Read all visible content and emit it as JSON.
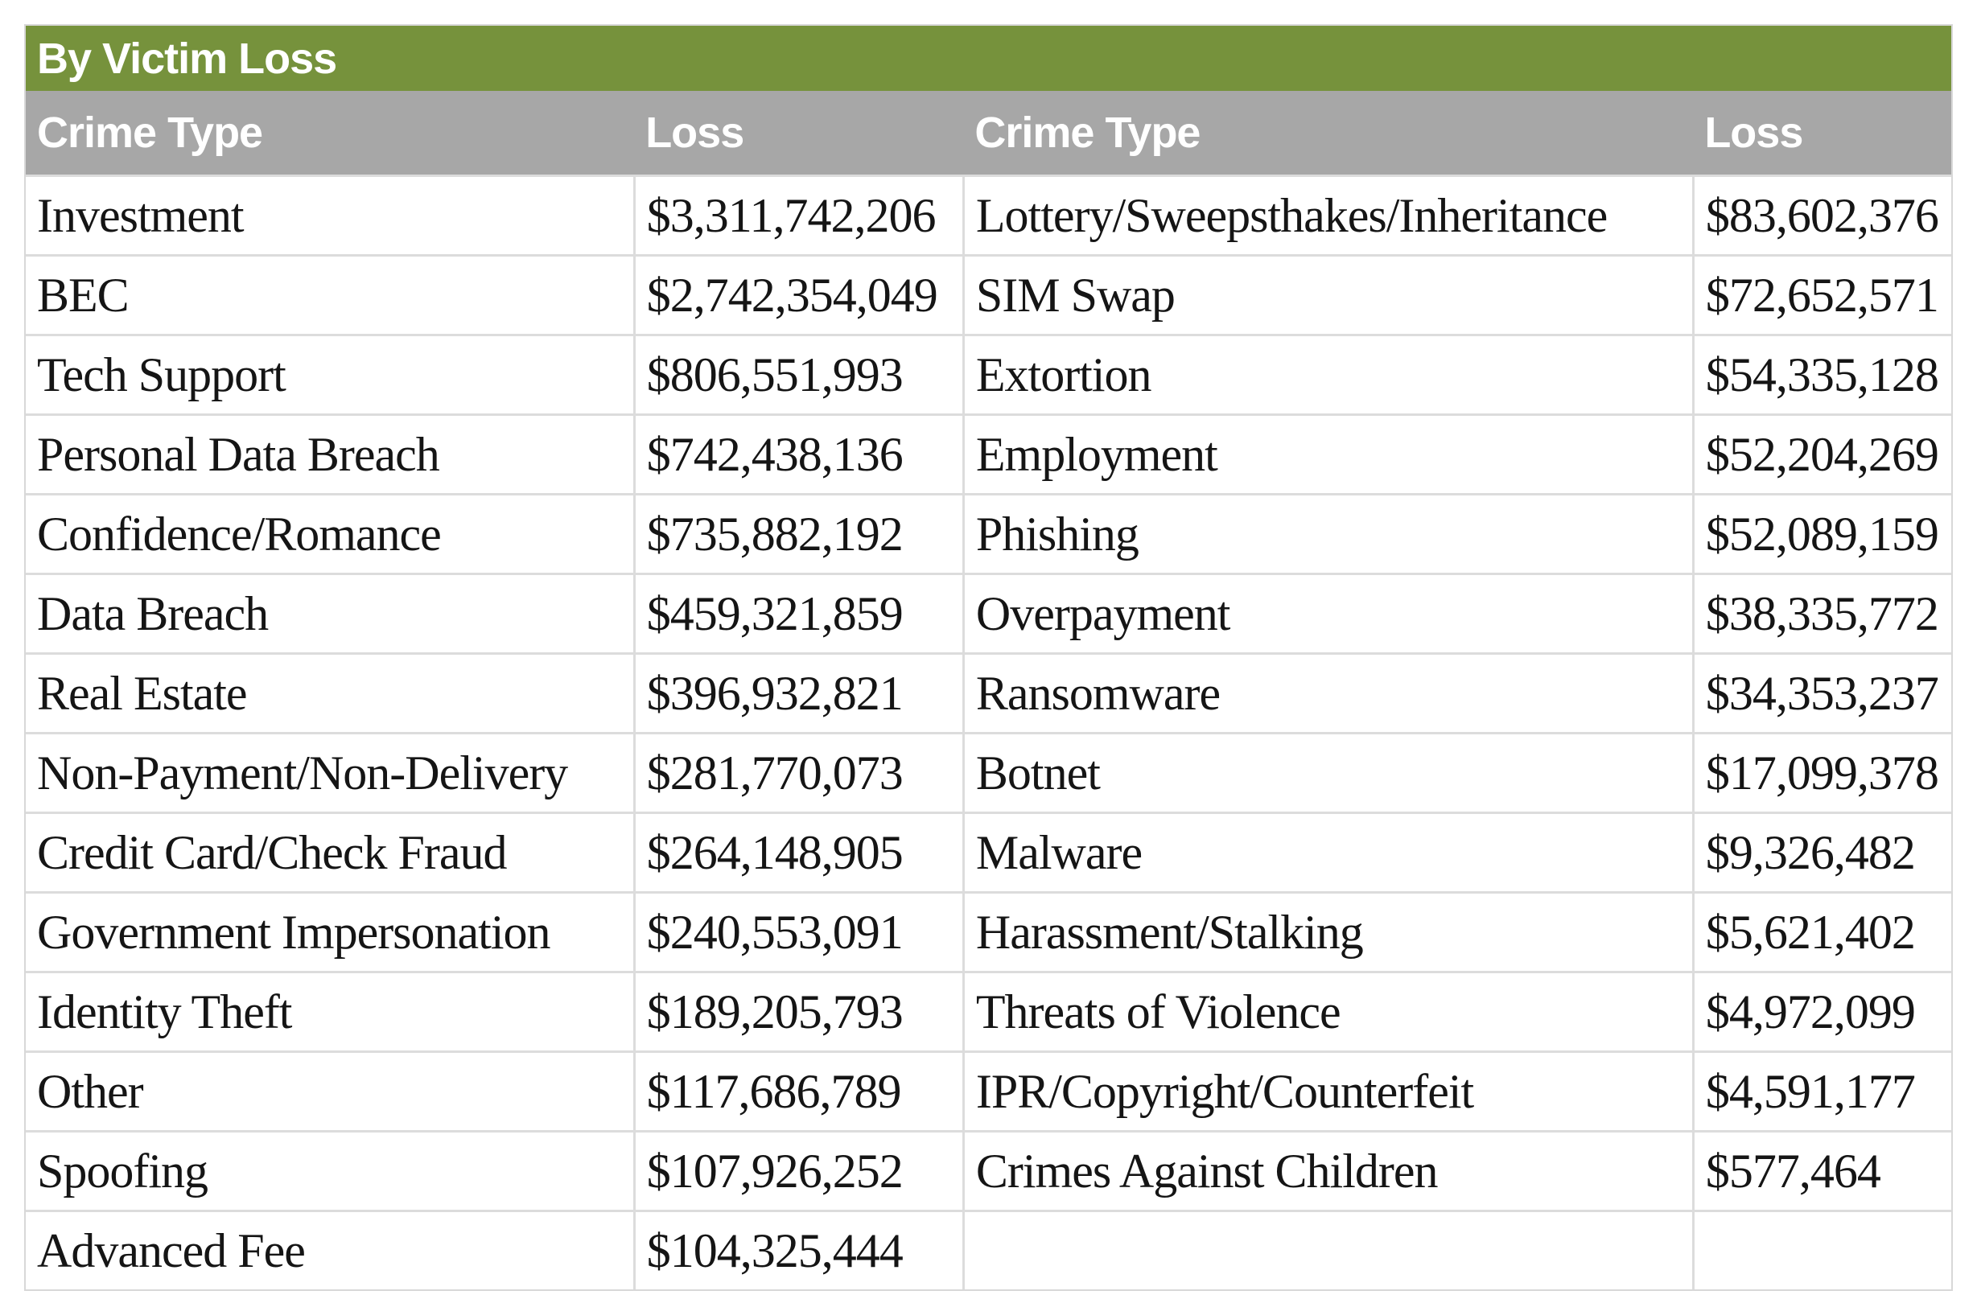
{
  "table": {
    "title": "By Victim Loss",
    "headers": [
      "Crime Type",
      "Loss",
      "Crime Type",
      "Loss"
    ],
    "rows": [
      [
        "Investment",
        "$3,311,742,206",
        "Lottery/Sweepsthakes/Inheritance",
        "$83,602,376"
      ],
      [
        "BEC",
        "$2,742,354,049",
        "SIM Swap",
        "$72,652,571"
      ],
      [
        "Tech Support",
        "$806,551,993",
        "Extortion",
        "$54,335,128"
      ],
      [
        "Personal Data Breach",
        "$742,438,136",
        "Employment",
        "$52,204,269"
      ],
      [
        "Confidence/Romance",
        "$735,882,192",
        "Phishing",
        "$52,089,159"
      ],
      [
        "Data Breach",
        "$459,321,859",
        "Overpayment",
        "$38,335,772"
      ],
      [
        "Real Estate",
        "$396,932,821",
        "Ransomware",
        "$34,353,237"
      ],
      [
        "Non-Payment/Non-Delivery",
        "$281,770,073",
        "Botnet",
        "$17,099,378"
      ],
      [
        "Credit Card/Check Fraud",
        "$264,148,905",
        "Malware",
        "$9,326,482"
      ],
      [
        "Government Impersonation",
        "$240,553,091",
        "Harassment/Stalking",
        "$5,621,402"
      ],
      [
        "Identity Theft",
        "$189,205,793",
        "Threats of Violence",
        "$4,972,099"
      ],
      [
        "Other",
        "$117,686,789",
        "IPR/Copyright/Counterfeit",
        "$4,591,177"
      ],
      [
        "Spoofing",
        "$107,926,252",
        "Crimes Against Children",
        "$577,464"
      ],
      [
        "Advanced Fee",
        "$104,325,444",
        "",
        ""
      ]
    ],
    "colors": {
      "title_bg": "#76923C",
      "header_bg": "#A7A7A7",
      "header_text": "#FFFFFF",
      "body_text": "#151515",
      "gridline": "#DCDCDC"
    }
  },
  "chart_data": {
    "type": "table",
    "title": "By Victim Loss",
    "columns": [
      "Crime Type",
      "Loss",
      "Crime Type",
      "Loss"
    ],
    "entries": [
      {
        "crime_type": "Investment",
        "loss_usd": 3311742206,
        "loss_label": "$3,311,742,206"
      },
      {
        "crime_type": "BEC",
        "loss_usd": 2742354049,
        "loss_label": "$2,742,354,049"
      },
      {
        "crime_type": "Tech Support",
        "loss_usd": 806551993,
        "loss_label": "$806,551,993"
      },
      {
        "crime_type": "Personal Data Breach",
        "loss_usd": 742438136,
        "loss_label": "$742,438,136"
      },
      {
        "crime_type": "Confidence/Romance",
        "loss_usd": 735882192,
        "loss_label": "$735,882,192"
      },
      {
        "crime_type": "Data Breach",
        "loss_usd": 459321859,
        "loss_label": "$459,321,859"
      },
      {
        "crime_type": "Real Estate",
        "loss_usd": 396932821,
        "loss_label": "$396,932,821"
      },
      {
        "crime_type": "Non-Payment/Non-Delivery",
        "loss_usd": 281770073,
        "loss_label": "$281,770,073"
      },
      {
        "crime_type": "Credit Card/Check Fraud",
        "loss_usd": 264148905,
        "loss_label": "$264,148,905"
      },
      {
        "crime_type": "Government Impersonation",
        "loss_usd": 240553091,
        "loss_label": "$240,553,091"
      },
      {
        "crime_type": "Identity Theft",
        "loss_usd": 189205793,
        "loss_label": "$189,205,793"
      },
      {
        "crime_type": "Other",
        "loss_usd": 117686789,
        "loss_label": "$117,686,789"
      },
      {
        "crime_type": "Spoofing",
        "loss_usd": 107926252,
        "loss_label": "$107,926,252"
      },
      {
        "crime_type": "Advanced Fee",
        "loss_usd": 104325444,
        "loss_label": "$104,325,444"
      },
      {
        "crime_type": "Lottery/Sweepsthakes/Inheritance",
        "loss_usd": 83602376,
        "loss_label": "$83,602,376"
      },
      {
        "crime_type": "SIM Swap",
        "loss_usd": 72652571,
        "loss_label": "$72,652,571"
      },
      {
        "crime_type": "Extortion",
        "loss_usd": 54335128,
        "loss_label": "$54,335,128"
      },
      {
        "crime_type": "Employment",
        "loss_usd": 52204269,
        "loss_label": "$52,204,269"
      },
      {
        "crime_type": "Phishing",
        "loss_usd": 52089159,
        "loss_label": "$52,089,159"
      },
      {
        "crime_type": "Overpayment",
        "loss_usd": 38335772,
        "loss_label": "$38,335,772"
      },
      {
        "crime_type": "Ransomware",
        "loss_usd": 34353237,
        "loss_label": "$34,353,237"
      },
      {
        "crime_type": "Botnet",
        "loss_usd": 17099378,
        "loss_label": "$17,099,378"
      },
      {
        "crime_type": "Malware",
        "loss_usd": 9326482,
        "loss_label": "$9,326,482"
      },
      {
        "crime_type": "Harassment/Stalking",
        "loss_usd": 5621402,
        "loss_label": "$5,621,402"
      },
      {
        "crime_type": "Threats of Violence",
        "loss_usd": 4972099,
        "loss_label": "$4,972,099"
      },
      {
        "crime_type": "IPR/Copyright/Counterfeit",
        "loss_usd": 4591177,
        "loss_label": "$4,591,177"
      },
      {
        "crime_type": "Crimes Against Children",
        "loss_usd": 577464,
        "loss_label": "$577,464"
      }
    ],
    "layout": {
      "presentation": "two-column table, losses sorted descending; left column rows 1-14, right column rows 15-27",
      "grid": true
    }
  }
}
